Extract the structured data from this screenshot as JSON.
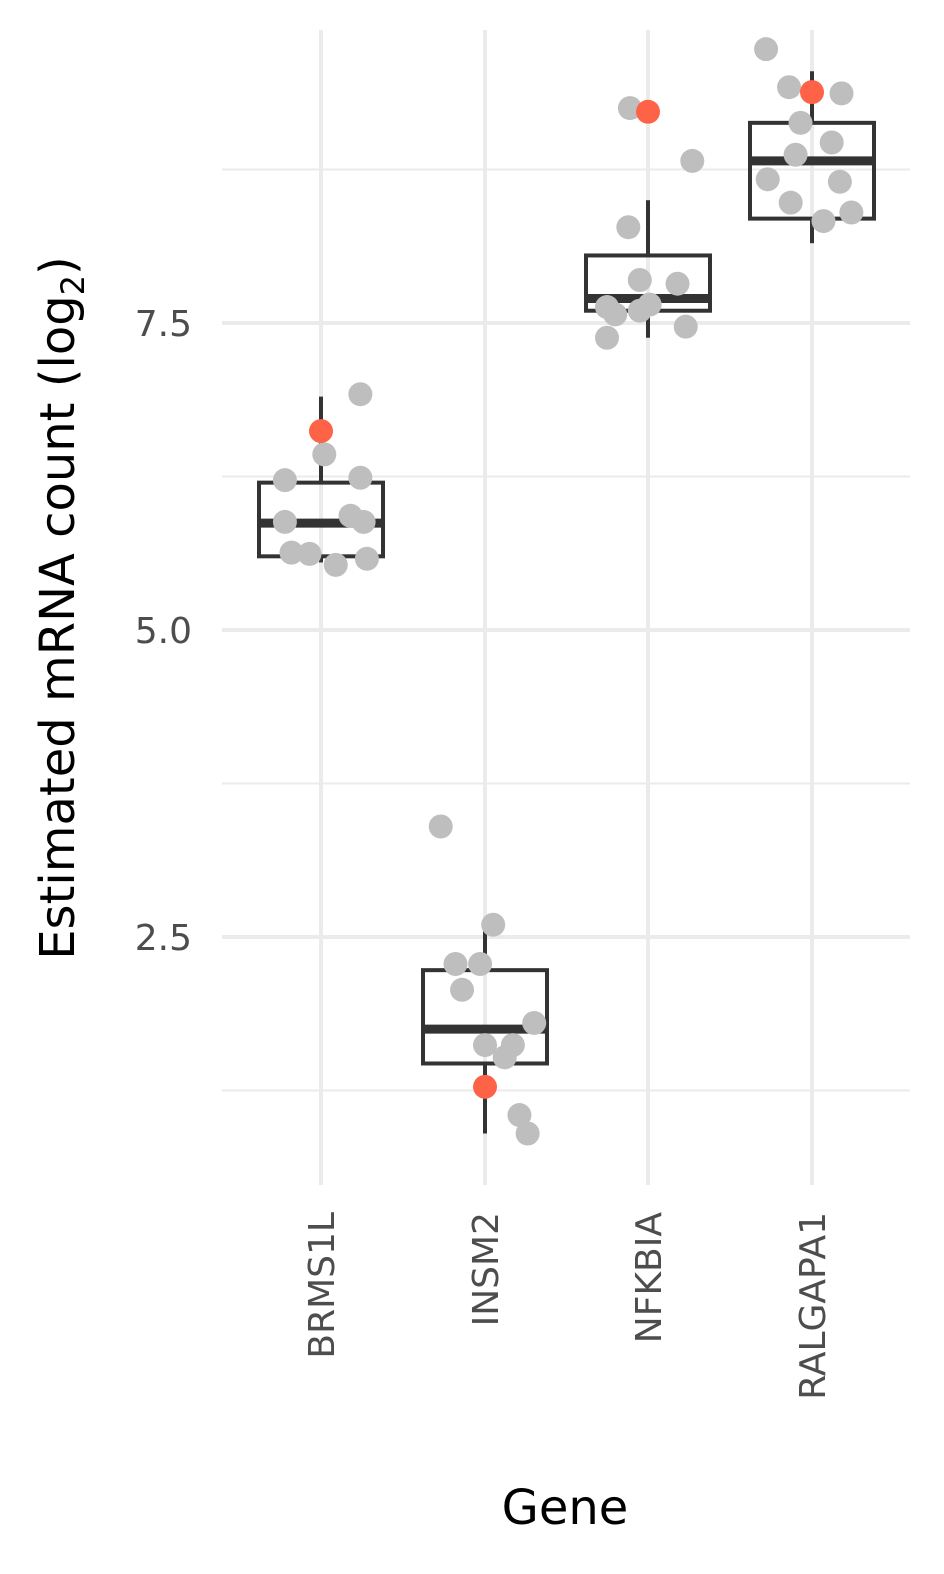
{
  "chart_data": {
    "type": "boxplot",
    "xlabel": "Gene",
    "ylabel_main": "Estimated mRNA count (log",
    "ylabel_sub": "2",
    "ylabel_close": ")",
    "categories": [
      "BRMS1L",
      "INSM2",
      "NFKBIA",
      "RALGAPA1"
    ],
    "ylim": [
      0.35,
      9.85
    ],
    "y_major_ticks": [
      2.5,
      5.0,
      7.5
    ],
    "y_tick_labels": [
      "2.5",
      "5.0",
      "7.5"
    ],
    "y_minor_ticks": [
      1.25,
      3.75,
      6.25,
      8.75
    ],
    "grid": true,
    "colors": {
      "point": "#bebebe",
      "highlight": "#ff6347",
      "box": "#333333",
      "grid": "#ebebeb"
    },
    "boxes": [
      {
        "category": "BRMS1L",
        "whisker_low": 5.55,
        "q1": 5.6,
        "median": 5.87,
        "q3": 6.2,
        "whisker_high": 6.9
      },
      {
        "category": "INSM2",
        "whisker_low": 0.9,
        "q1": 1.47,
        "median": 1.75,
        "q3": 2.23,
        "whisker_high": 2.6
      },
      {
        "category": "NFKBIA",
        "whisker_low": 7.38,
        "q1": 7.6,
        "median": 7.7,
        "q3": 8.05,
        "whisker_high": 8.5
      },
      {
        "category": "RALGAPA1",
        "whisker_low": 8.15,
        "q1": 8.35,
        "median": 8.82,
        "q3": 9.13,
        "whisker_high": 9.55
      }
    ],
    "points": [
      {
        "category": "BRMS1L",
        "y": 6.92,
        "jitter": 0.24,
        "highlight": false
      },
      {
        "category": "BRMS1L",
        "y": 6.62,
        "jitter": 0.0,
        "highlight": true
      },
      {
        "category": "BRMS1L",
        "y": 6.43,
        "jitter": 0.02,
        "highlight": false
      },
      {
        "category": "BRMS1L",
        "y": 6.22,
        "jitter": -0.22,
        "highlight": false
      },
      {
        "category": "BRMS1L",
        "y": 6.24,
        "jitter": 0.24,
        "highlight": false
      },
      {
        "category": "BRMS1L",
        "y": 5.93,
        "jitter": 0.18,
        "highlight": false
      },
      {
        "category": "BRMS1L",
        "y": 5.88,
        "jitter": -0.22,
        "highlight": false
      },
      {
        "category": "BRMS1L",
        "y": 5.88,
        "jitter": 0.26,
        "highlight": false
      },
      {
        "category": "BRMS1L",
        "y": 5.63,
        "jitter": -0.18,
        "highlight": false
      },
      {
        "category": "BRMS1L",
        "y": 5.62,
        "jitter": -0.07,
        "highlight": false
      },
      {
        "category": "BRMS1L",
        "y": 5.58,
        "jitter": 0.28,
        "highlight": false
      },
      {
        "category": "BRMS1L",
        "y": 5.53,
        "jitter": 0.09,
        "highlight": false
      },
      {
        "category": "INSM2",
        "y": 3.4,
        "jitter": -0.27,
        "highlight": false
      },
      {
        "category": "INSM2",
        "y": 2.6,
        "jitter": 0.05,
        "highlight": false
      },
      {
        "category": "INSM2",
        "y": 2.28,
        "jitter": -0.18,
        "highlight": false
      },
      {
        "category": "INSM2",
        "y": 2.28,
        "jitter": -0.03,
        "highlight": false
      },
      {
        "category": "INSM2",
        "y": 2.07,
        "jitter": -0.14,
        "highlight": false
      },
      {
        "category": "INSM2",
        "y": 1.8,
        "jitter": 0.3,
        "highlight": false
      },
      {
        "category": "INSM2",
        "y": 1.62,
        "jitter": 0.0,
        "highlight": false
      },
      {
        "category": "INSM2",
        "y": 1.62,
        "jitter": 0.17,
        "highlight": false
      },
      {
        "category": "INSM2",
        "y": 1.52,
        "jitter": 0.12,
        "highlight": false
      },
      {
        "category": "INSM2",
        "y": 1.28,
        "jitter": 0.0,
        "highlight": true
      },
      {
        "category": "INSM2",
        "y": 1.05,
        "jitter": 0.21,
        "highlight": false
      },
      {
        "category": "INSM2",
        "y": 0.9,
        "jitter": 0.26,
        "highlight": false
      },
      {
        "category": "NFKBIA",
        "y": 9.25,
        "jitter": -0.11,
        "highlight": false
      },
      {
        "category": "NFKBIA",
        "y": 9.22,
        "jitter": 0.0,
        "highlight": true
      },
      {
        "category": "NFKBIA",
        "y": 8.82,
        "jitter": 0.27,
        "highlight": false
      },
      {
        "category": "NFKBIA",
        "y": 8.28,
        "jitter": -0.12,
        "highlight": false
      },
      {
        "category": "NFKBIA",
        "y": 7.85,
        "jitter": -0.05,
        "highlight": false
      },
      {
        "category": "NFKBIA",
        "y": 7.82,
        "jitter": 0.18,
        "highlight": false
      },
      {
        "category": "NFKBIA",
        "y": 7.65,
        "jitter": 0.01,
        "highlight": false
      },
      {
        "category": "NFKBIA",
        "y": 7.63,
        "jitter": -0.25,
        "highlight": false
      },
      {
        "category": "NFKBIA",
        "y": 7.6,
        "jitter": -0.05,
        "highlight": false
      },
      {
        "category": "NFKBIA",
        "y": 7.57,
        "jitter": -0.2,
        "highlight": false
      },
      {
        "category": "NFKBIA",
        "y": 7.47,
        "jitter": 0.23,
        "highlight": false
      },
      {
        "category": "NFKBIA",
        "y": 7.38,
        "jitter": -0.25,
        "highlight": false
      },
      {
        "category": "RALGAPA1",
        "y": 9.73,
        "jitter": -0.28,
        "highlight": false
      },
      {
        "category": "RALGAPA1",
        "y": 9.42,
        "jitter": -0.14,
        "highlight": false
      },
      {
        "category": "RALGAPA1",
        "y": 9.38,
        "jitter": 0.0,
        "highlight": true
      },
      {
        "category": "RALGAPA1",
        "y": 9.37,
        "jitter": 0.18,
        "highlight": false
      },
      {
        "category": "RALGAPA1",
        "y": 9.13,
        "jitter": -0.07,
        "highlight": false
      },
      {
        "category": "RALGAPA1",
        "y": 8.97,
        "jitter": 0.12,
        "highlight": false
      },
      {
        "category": "RALGAPA1",
        "y": 8.87,
        "jitter": -0.1,
        "highlight": false
      },
      {
        "category": "RALGAPA1",
        "y": 8.67,
        "jitter": -0.27,
        "highlight": false
      },
      {
        "category": "RALGAPA1",
        "y": 8.65,
        "jitter": 0.17,
        "highlight": false
      },
      {
        "category": "RALGAPA1",
        "y": 8.48,
        "jitter": -0.13,
        "highlight": false
      },
      {
        "category": "RALGAPA1",
        "y": 8.4,
        "jitter": 0.24,
        "highlight": false
      },
      {
        "category": "RALGAPA1",
        "y": 8.33,
        "jitter": 0.07,
        "highlight": false
      }
    ]
  }
}
